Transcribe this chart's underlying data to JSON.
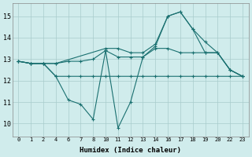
{
  "xlabel": "Humidex (Indice chaleur)",
  "bg_color": "#d0ecec",
  "grid_color": "#a8cccc",
  "line_color": "#1a7070",
  "xtick_labels": [
    "0",
    "1",
    "2",
    "4",
    "6",
    "7",
    "8",
    "10",
    "11",
    "12",
    "13",
    "14",
    "16",
    "17",
    "18",
    "19",
    "20",
    "22",
    "23"
  ],
  "series": [
    {
      "xi": [
        0,
        1,
        2,
        3,
        4,
        5,
        6,
        7,
        8,
        9,
        10,
        11,
        12,
        13,
        14,
        15,
        16,
        17,
        18
      ],
      "y": [
        12.9,
        12.8,
        12.8,
        12.2,
        12.2,
        12.2,
        12.2,
        12.2,
        12.2,
        12.2,
        12.2,
        12.2,
        12.2,
        12.2,
        12.2,
        12.2,
        12.2,
        12.2,
        12.2
      ]
    },
    {
      "xi": [
        0,
        1,
        2,
        3,
        4,
        5,
        6,
        7,
        8,
        9,
        10,
        11,
        12,
        13,
        14,
        15,
        16,
        17,
        18
      ],
      "y": [
        12.9,
        12.8,
        12.8,
        12.8,
        12.9,
        12.9,
        13.0,
        13.4,
        13.1,
        13.1,
        13.1,
        13.5,
        13.5,
        13.3,
        13.3,
        13.3,
        13.3,
        12.5,
        12.2
      ]
    },
    {
      "xi": [
        0,
        1,
        2,
        3,
        4,
        5,
        6,
        7,
        8,
        9,
        10,
        11,
        12,
        13,
        14,
        15,
        16,
        17,
        18
      ],
      "y": [
        12.9,
        12.8,
        12.8,
        12.2,
        11.1,
        10.9,
        10.2,
        13.4,
        9.8,
        11.0,
        13.1,
        13.6,
        15.0,
        15.2,
        14.4,
        13.8,
        13.3,
        12.5,
        12.2
      ]
    },
    {
      "xi": [
        0,
        1,
        2,
        3,
        7,
        8,
        9,
        10,
        11,
        12,
        13,
        14,
        15,
        16,
        17,
        18
      ],
      "y": [
        12.9,
        12.8,
        12.8,
        12.8,
        13.5,
        13.5,
        13.3,
        13.3,
        13.7,
        15.0,
        15.2,
        14.4,
        13.3,
        13.3,
        12.5,
        12.2
      ]
    }
  ],
  "yticks": [
    10,
    11,
    12,
    13,
    14,
    15
  ],
  "ylim": [
    9.4,
    15.6
  ],
  "xlim": [
    -0.5,
    18.5
  ]
}
